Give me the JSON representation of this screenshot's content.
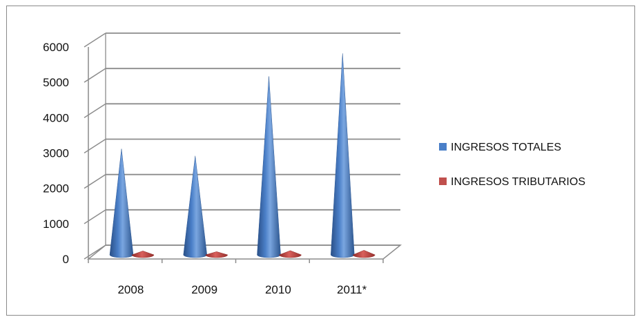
{
  "chart_data": {
    "type": "bar",
    "style": "3d-cone",
    "categories": [
      "2008",
      "2009",
      "2010",
      "2011*"
    ],
    "series": [
      {
        "name": "INGRESOS TOTALES",
        "color": "#4a7fc8",
        "values": [
          3000,
          2800,
          5050,
          5700
        ]
      },
      {
        "name": "INGRESOS TRIBUTARIOS",
        "color": "#c0504d",
        "values": [
          110,
          90,
          120,
          130
        ]
      }
    ],
    "y_ticks": [
      0,
      1000,
      2000,
      3000,
      4000,
      5000,
      6000
    ],
    "ylim": [
      0,
      6000
    ],
    "grid": true,
    "legend_position": "right"
  }
}
